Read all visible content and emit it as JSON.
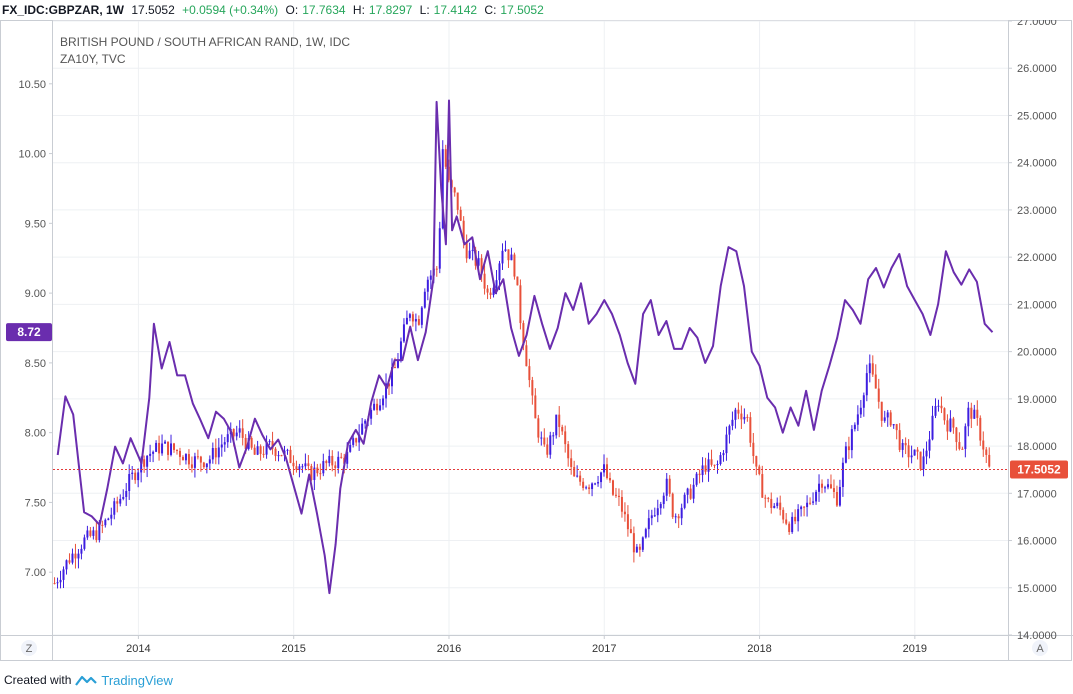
{
  "header": {
    "symbol": "FX_IDC:GBPZAR, 1W",
    "last": "17.5052",
    "change": "+0.0594 (+0.34%)",
    "open_label": "O:",
    "open": "17.7634",
    "high_label": "H:",
    "high": "17.8297",
    "low_label": "L:",
    "low": "17.4142",
    "close_label": "C:",
    "close": "17.5052"
  },
  "legend": {
    "main": "BRITISH POUND / SOUTH AFRICAN RAND, 1W, IDC",
    "overlay": "ZA10Y, TVC"
  },
  "badges": {
    "left_value": "8.72",
    "right_value": "17.5052",
    "left_corner": "Z",
    "right_corner": "A"
  },
  "footer": {
    "created_with": "Created with",
    "brand": "TradingView"
  },
  "colors": {
    "up": "#3d1ee0",
    "down": "#e8503a",
    "overlay": "#6a2dae",
    "last_line": "#e23a3a",
    "grid": "#eef0f3",
    "axis": "#c9cdd3"
  },
  "chart_data": {
    "type": "line",
    "x_axis": {
      "ticks": [
        "2014",
        "2015",
        "2016",
        "2017",
        "2018",
        "2019"
      ],
      "range": [
        2013.45,
        2019.6
      ]
    },
    "y_left": {
      "ticks": [
        "7.00",
        "7.50",
        "8.00",
        "8.50",
        "9.00",
        "9.50",
        "10.00",
        "10.50"
      ],
      "range": [
        6.55,
        10.95
      ]
    },
    "y_right": {
      "ticks": [
        "14.0000",
        "15.0000",
        "16.0000",
        "17.0000",
        "18.0000",
        "19.0000",
        "20.0000",
        "21.0000",
        "22.0000",
        "23.0000",
        "24.0000",
        "25.0000",
        "26.0000",
        "27.0000"
      ],
      "range": [
        14.0,
        27.0
      ]
    },
    "grid": true,
    "series": [
      {
        "axis": "right",
        "points": [
          [
            2013.46,
            15.1
          ],
          [
            2013.55,
            15.6
          ],
          [
            2013.65,
            16.0
          ],
          [
            2013.75,
            16.2
          ],
          [
            2013.85,
            16.7
          ],
          [
            2013.95,
            17.3
          ],
          [
            2014.05,
            17.8
          ],
          [
            2014.15,
            18.0
          ],
          [
            2014.25,
            17.9
          ],
          [
            2014.35,
            17.7
          ],
          [
            2014.45,
            17.7
          ],
          [
            2014.55,
            18.1
          ],
          [
            2014.65,
            18.3
          ],
          [
            2014.75,
            17.8
          ],
          [
            2014.85,
            18.0
          ],
          [
            2014.95,
            17.8
          ],
          [
            2015.05,
            17.6
          ],
          [
            2015.1,
            17.4
          ],
          [
            2015.2,
            17.6
          ],
          [
            2015.3,
            17.7
          ],
          [
            2015.35,
            17.8
          ],
          [
            2015.45,
            18.5
          ],
          [
            2015.55,
            19.0
          ],
          [
            2015.65,
            19.6
          ],
          [
            2015.7,
            20.3
          ],
          [
            2015.75,
            20.9
          ],
          [
            2015.8,
            20.6
          ],
          [
            2015.85,
            21.5
          ],
          [
            2015.93,
            21.8
          ],
          [
            2015.96,
            24.3
          ],
          [
            2016.0,
            23.5
          ],
          [
            2016.05,
            23.2
          ],
          [
            2016.1,
            22.2
          ],
          [
            2016.2,
            21.8
          ],
          [
            2016.25,
            21.2
          ],
          [
            2016.3,
            21.6
          ],
          [
            2016.35,
            22.3
          ],
          [
            2016.42,
            21.8
          ],
          [
            2016.46,
            20.7
          ],
          [
            2016.5,
            19.8
          ],
          [
            2016.55,
            18.6
          ],
          [
            2016.62,
            17.8
          ],
          [
            2016.7,
            18.6
          ],
          [
            2016.8,
            17.3
          ],
          [
            2016.9,
            17.2
          ],
          [
            2017.0,
            17.5
          ],
          [
            2017.05,
            17.0
          ],
          [
            2017.1,
            16.8
          ],
          [
            2017.2,
            15.8
          ],
          [
            2017.22,
            15.6
          ],
          [
            2017.3,
            16.5
          ],
          [
            2017.4,
            17.2
          ],
          [
            2017.45,
            16.5
          ],
          [
            2017.55,
            17.0
          ],
          [
            2017.65,
            17.6
          ],
          [
            2017.72,
            17.5
          ],
          [
            2017.8,
            18.3
          ],
          [
            2017.85,
            18.8
          ],
          [
            2017.92,
            18.6
          ],
          [
            2017.98,
            17.4
          ],
          [
            2018.05,
            16.8
          ],
          [
            2018.12,
            16.7
          ],
          [
            2018.2,
            16.3
          ],
          [
            2018.3,
            16.7
          ],
          [
            2018.4,
            17.3
          ],
          [
            2018.5,
            16.9
          ],
          [
            2018.55,
            17.8
          ],
          [
            2018.6,
            18.3
          ],
          [
            2018.65,
            18.9
          ],
          [
            2018.7,
            19.7
          ],
          [
            2018.75,
            19.2
          ],
          [
            2018.8,
            18.5
          ],
          [
            2018.85,
            18.6
          ],
          [
            2018.92,
            17.9
          ],
          [
            2019.0,
            17.8
          ],
          [
            2019.05,
            17.6
          ],
          [
            2019.1,
            18.3
          ],
          [
            2019.15,
            19.0
          ],
          [
            2019.2,
            18.5
          ],
          [
            2019.25,
            18.4
          ],
          [
            2019.3,
            17.9
          ],
          [
            2019.35,
            18.8
          ],
          [
            2019.4,
            18.5
          ],
          [
            2019.45,
            17.9
          ],
          [
            2019.48,
            17.5
          ]
        ]
      },
      {
        "axis": "left",
        "points": [
          [
            2013.48,
            7.84
          ],
          [
            2013.53,
            8.26
          ],
          [
            2013.58,
            8.13
          ],
          [
            2013.62,
            7.73
          ],
          [
            2013.65,
            7.43
          ],
          [
            2013.7,
            7.4
          ],
          [
            2013.75,
            7.34
          ],
          [
            2013.8,
            7.6
          ],
          [
            2013.85,
            7.9
          ],
          [
            2013.9,
            7.78
          ],
          [
            2013.95,
            7.96
          ],
          [
            2014.02,
            7.78
          ],
          [
            2014.07,
            8.25
          ],
          [
            2014.1,
            8.78
          ],
          [
            2014.15,
            8.46
          ],
          [
            2014.2,
            8.65
          ],
          [
            2014.25,
            8.41
          ],
          [
            2014.3,
            8.41
          ],
          [
            2014.35,
            8.21
          ],
          [
            2014.4,
            8.09
          ],
          [
            2014.45,
            7.96
          ],
          [
            2014.5,
            8.15
          ],
          [
            2014.55,
            8.1
          ],
          [
            2014.6,
            8.0
          ],
          [
            2014.65,
            7.75
          ],
          [
            2014.7,
            7.9
          ],
          [
            2014.75,
            8.1
          ],
          [
            2014.8,
            7.98
          ],
          [
            2014.85,
            7.88
          ],
          [
            2014.9,
            7.95
          ],
          [
            2014.95,
            7.82
          ],
          [
            2015.0,
            7.62
          ],
          [
            2015.05,
            7.42
          ],
          [
            2015.1,
            7.7
          ],
          [
            2015.15,
            7.42
          ],
          [
            2015.2,
            7.12
          ],
          [
            2015.23,
            6.85
          ],
          [
            2015.27,
            7.2
          ],
          [
            2015.3,
            7.6
          ],
          [
            2015.35,
            7.92
          ],
          [
            2015.4,
            8.02
          ],
          [
            2015.45,
            7.92
          ],
          [
            2015.5,
            8.22
          ],
          [
            2015.55,
            8.41
          ],
          [
            2015.6,
            8.32
          ],
          [
            2015.65,
            8.52
          ],
          [
            2015.7,
            8.52
          ],
          [
            2015.75,
            8.76
          ],
          [
            2015.8,
            8.52
          ],
          [
            2015.85,
            8.72
          ],
          [
            2015.9,
            9.1
          ],
          [
            2015.92,
            10.37
          ],
          [
            2015.95,
            9.75
          ],
          [
            2015.98,
            9.35
          ],
          [
            2016.0,
            10.38
          ],
          [
            2016.02,
            9.45
          ],
          [
            2016.05,
            9.55
          ],
          [
            2016.1,
            9.35
          ],
          [
            2016.15,
            9.4
          ],
          [
            2016.2,
            9.1
          ],
          [
            2016.25,
            9.3
          ],
          [
            2016.3,
            9.0
          ],
          [
            2016.35,
            9.1
          ],
          [
            2016.4,
            8.75
          ],
          [
            2016.45,
            8.55
          ],
          [
            2016.5,
            8.7
          ],
          [
            2016.55,
            8.98
          ],
          [
            2016.6,
            8.78
          ],
          [
            2016.65,
            8.6
          ],
          [
            2016.7,
            8.75
          ],
          [
            2016.75,
            9.0
          ],
          [
            2016.8,
            8.88
          ],
          [
            2016.85,
            9.07
          ],
          [
            2016.9,
            8.78
          ],
          [
            2016.95,
            8.85
          ],
          [
            2017.0,
            8.95
          ],
          [
            2017.05,
            8.85
          ],
          [
            2017.1,
            8.7
          ],
          [
            2017.15,
            8.5
          ],
          [
            2017.2,
            8.35
          ],
          [
            2017.25,
            8.85
          ],
          [
            2017.3,
            8.95
          ],
          [
            2017.35,
            8.7
          ],
          [
            2017.4,
            8.8
          ],
          [
            2017.45,
            8.6
          ],
          [
            2017.5,
            8.6
          ],
          [
            2017.55,
            8.75
          ],
          [
            2017.6,
            8.68
          ],
          [
            2017.65,
            8.5
          ],
          [
            2017.7,
            8.62
          ],
          [
            2017.75,
            9.05
          ],
          [
            2017.8,
            9.33
          ],
          [
            2017.85,
            9.3
          ],
          [
            2017.9,
            9.05
          ],
          [
            2017.95,
            8.58
          ],
          [
            2018.0,
            8.48
          ],
          [
            2018.05,
            8.25
          ],
          [
            2018.1,
            8.18
          ],
          [
            2018.15,
            8.0
          ],
          [
            2018.2,
            8.18
          ],
          [
            2018.25,
            8.05
          ],
          [
            2018.3,
            8.3
          ],
          [
            2018.35,
            8.02
          ],
          [
            2018.4,
            8.3
          ],
          [
            2018.45,
            8.48
          ],
          [
            2018.5,
            8.68
          ],
          [
            2018.55,
            8.95
          ],
          [
            2018.6,
            8.88
          ],
          [
            2018.65,
            8.78
          ],
          [
            2018.7,
            9.1
          ],
          [
            2018.75,
            9.18
          ],
          [
            2018.8,
            9.04
          ],
          [
            2018.85,
            9.18
          ],
          [
            2018.9,
            9.28
          ],
          [
            2018.95,
            9.05
          ],
          [
            2019.0,
            8.95
          ],
          [
            2019.05,
            8.85
          ],
          [
            2019.1,
            8.7
          ],
          [
            2019.15,
            8.92
          ],
          [
            2019.2,
            9.3
          ],
          [
            2019.25,
            9.15
          ],
          [
            2019.3,
            9.06
          ],
          [
            2019.35,
            9.17
          ],
          [
            2019.4,
            9.08
          ],
          [
            2019.45,
            8.78
          ],
          [
            2019.5,
            8.72
          ]
        ]
      }
    ]
  }
}
